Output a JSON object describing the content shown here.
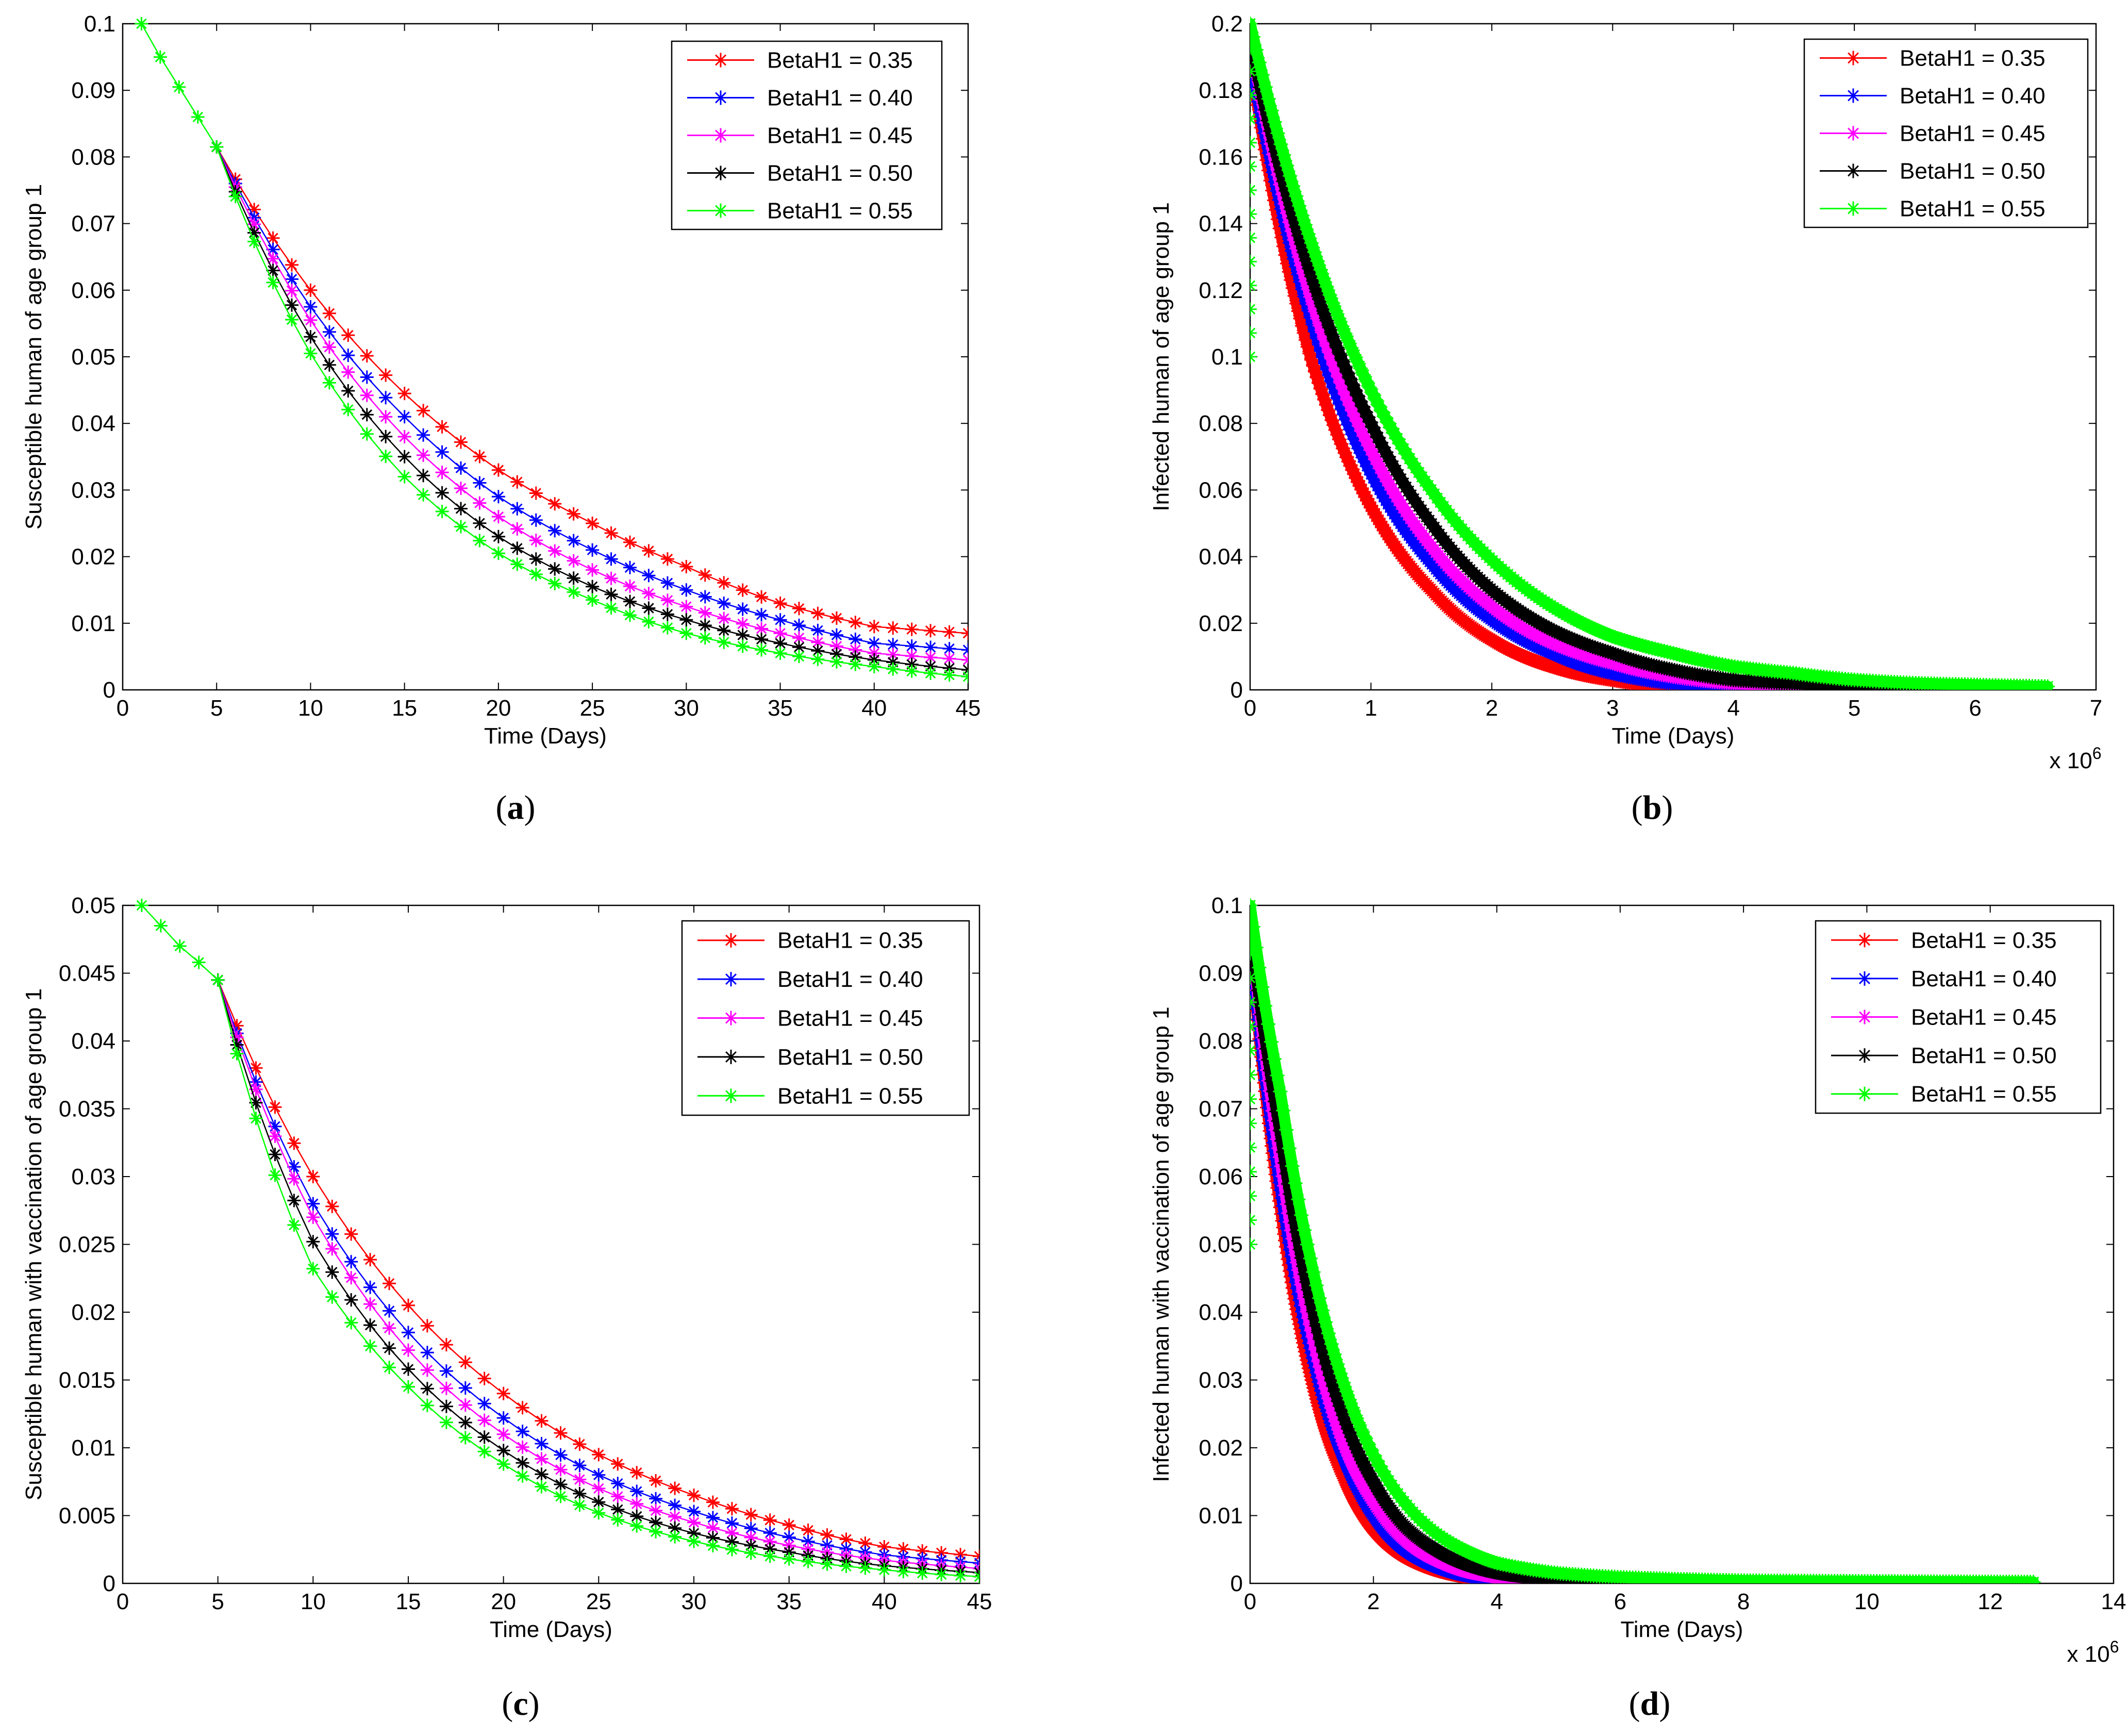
{
  "chart_data": [
    {
      "id": "a",
      "type": "line",
      "caption": "a",
      "title": "",
      "xlabel": "Time (Days)",
      "ylabel": "Susceptible human  of age group 1",
      "xlim": [
        0,
        45
      ],
      "ylim": [
        0,
        0.1
      ],
      "xticks": [
        "0",
        "5",
        "10",
        "15",
        "20",
        "25",
        "30",
        "35",
        "40",
        "45"
      ],
      "yticks": [
        "0",
        "0.01",
        "0.02",
        "0.03",
        "0.04",
        "0.05",
        "0.06",
        "0.07",
        "0.08",
        "0.09",
        "0.1"
      ],
      "exponent_label": "",
      "grid": false,
      "legend_position": "top-right",
      "shared_initial": {
        "x": [
          1,
          2,
          3,
          4,
          5
        ],
        "y": [
          0.1,
          0.095,
          0.0905,
          0.086,
          0.0815
        ]
      },
      "series": [
        {
          "name": "BetaH1 =  0.35",
          "color": "#ff0000",
          "x": [
            5,
            10,
            15,
            20,
            25,
            30,
            35,
            40,
            45
          ],
          "y": [
            0.0815,
            0.06,
            0.0445,
            0.033,
            0.025,
            0.0185,
            0.013,
            0.0095,
            0.0085
          ]
        },
        {
          "name": "BetaH1 = 0.40",
          "color": "#0000ff",
          "x": [
            5,
            10,
            15,
            20,
            25,
            30,
            35,
            40,
            45
          ],
          "y": [
            0.0815,
            0.0575,
            0.041,
            0.029,
            0.021,
            0.015,
            0.0105,
            0.007,
            0.006
          ]
        },
        {
          "name": "BetaH1 = 0.45",
          "color": "#ff00ff",
          "x": [
            5,
            10,
            15,
            20,
            25,
            30,
            35,
            40,
            45
          ],
          "y": [
            0.0815,
            0.0555,
            0.038,
            0.026,
            0.018,
            0.0125,
            0.0085,
            0.0055,
            0.0045
          ]
        },
        {
          "name": "BetaH1 = 0.50",
          "color": "#000000",
          "x": [
            5,
            10,
            15,
            20,
            25,
            30,
            35,
            40,
            45
          ],
          "y": [
            0.0815,
            0.053,
            0.035,
            0.023,
            0.0155,
            0.0105,
            0.007,
            0.0045,
            0.003
          ]
        },
        {
          "name": "BetaH1 = 0.55",
          "color": "#00ff00",
          "x": [
            5,
            10,
            15,
            20,
            25,
            30,
            35,
            40,
            45
          ],
          "y": [
            0.0815,
            0.0505,
            0.032,
            0.0205,
            0.0135,
            0.0085,
            0.0055,
            0.0035,
            0.002
          ]
        }
      ]
    },
    {
      "id": "b",
      "type": "line",
      "caption": "b",
      "title": "",
      "xlabel": "Time (Days)",
      "ylabel": "Infected human of age group 1",
      "xlim": [
        0,
        7
      ],
      "ylim": [
        0,
        0.2
      ],
      "xticks": [
        "0",
        "1",
        "2",
        "3",
        "4",
        "5",
        "6",
        "7"
      ],
      "yticks": [
        "0",
        "0.02",
        "0.04",
        "0.06",
        "0.08",
        "0.1",
        "0.12",
        "0.14",
        "0.16",
        "0.18",
        "0.2"
      ],
      "exponent_label": "x 10^6",
      "grid": false,
      "legend_position": "top-right",
      "series": [
        {
          "name": "BetaH1 =  0.35",
          "color": "#ff0000",
          "x": [
            0,
            0.5,
            1,
            1.5,
            2,
            2.5,
            3,
            3.5,
            4
          ],
          "y": [
            0.19,
            0.1,
            0.055,
            0.03,
            0.015,
            0.007,
            0.003,
            0.001,
            0
          ]
        },
        {
          "name": "BetaH1 = 0.40",
          "color": "#0000ff",
          "x": [
            0,
            0.5,
            1,
            1.5,
            2,
            2.5,
            3,
            3.5,
            4,
            4.5
          ],
          "y": [
            0.19,
            0.112,
            0.065,
            0.038,
            0.021,
            0.011,
            0.005,
            0.002,
            0.001,
            0
          ]
        },
        {
          "name": "BetaH1 = 0.45",
          "color": "#ff00ff",
          "x": [
            0,
            0.5,
            1,
            1.5,
            2,
            2.5,
            3,
            3.5,
            4,
            4.5,
            5
          ],
          "y": [
            0.195,
            0.118,
            0.072,
            0.043,
            0.025,
            0.014,
            0.008,
            0.004,
            0.002,
            0.001,
            0
          ]
        },
        {
          "name": "BetaH1 = 0.50",
          "color": "#000000",
          "x": [
            0,
            0.5,
            1,
            1.5,
            2,
            2.5,
            3,
            3.5,
            4,
            4.5,
            5,
            5.5
          ],
          "y": [
            0.195,
            0.125,
            0.08,
            0.05,
            0.03,
            0.018,
            0.011,
            0.006,
            0.003,
            0.002,
            0.001,
            0
          ]
        },
        {
          "name": "BetaH1 = 0.55",
          "color": "#00ff00",
          "x": [
            0,
            0.5,
            1,
            1.5,
            2,
            2.5,
            3,
            3.5,
            4,
            4.5,
            5,
            5.5,
            6,
            6.6
          ],
          "y": [
            0.2,
            0.135,
            0.09,
            0.06,
            0.039,
            0.025,
            0.016,
            0.011,
            0.007,
            0.005,
            0.003,
            0.002,
            0.0015,
            0.001
          ]
        }
      ]
    },
    {
      "id": "c",
      "type": "line",
      "caption": "c",
      "title": "",
      "xlabel": "Time (Days)",
      "ylabel": "Susceptible human with vaccination of age group 1",
      "xlim": [
        0,
        45
      ],
      "ylim": [
        0,
        0.05
      ],
      "xticks": [
        "0",
        "5",
        "10",
        "15",
        "20",
        "25",
        "30",
        "35",
        "40",
        "45"
      ],
      "yticks": [
        "0",
        "0.005",
        "0.01",
        "0.015",
        "0.02",
        "0.025",
        "0.03",
        "0.035",
        "0.04",
        "0.045",
        "0.05"
      ],
      "exponent_label": "",
      "grid": false,
      "legend_position": "top-right",
      "shared_initial": {
        "x": [
          1,
          2,
          3,
          4,
          5
        ],
        "y": [
          0.05,
          0.0485,
          0.047,
          0.0458,
          0.0445
        ]
      },
      "series": [
        {
          "name": "BetaH1 =  0.35",
          "color": "#ff0000",
          "x": [
            5,
            10,
            15,
            20,
            25,
            30,
            35,
            40,
            45
          ],
          "y": [
            0.0445,
            0.03,
            0.0205,
            0.014,
            0.0095,
            0.0065,
            0.0043,
            0.0027,
            0.002
          ]
        },
        {
          "name": "BetaH1 = 0.40",
          "color": "#0000ff",
          "x": [
            5,
            10,
            15,
            20,
            25,
            30,
            35,
            40,
            45
          ],
          "y": [
            0.0445,
            0.028,
            0.0185,
            0.0122,
            0.008,
            0.0053,
            0.0034,
            0.0021,
            0.0015
          ]
        },
        {
          "name": "BetaH1 = 0.45",
          "color": "#ff00ff",
          "x": [
            5,
            10,
            15,
            20,
            25,
            30,
            35,
            40,
            45
          ],
          "y": [
            0.0445,
            0.027,
            0.0172,
            0.011,
            0.007,
            0.0045,
            0.0028,
            0.0017,
            0.0011
          ]
        },
        {
          "name": "BetaH1 = 0.50",
          "color": "#000000",
          "x": [
            5,
            10,
            15,
            20,
            25,
            30,
            35,
            40,
            45
          ],
          "y": [
            0.0445,
            0.0252,
            0.0158,
            0.0098,
            0.006,
            0.0037,
            0.0023,
            0.0013,
            0.0008
          ]
        },
        {
          "name": "BetaH1 = 0.55",
          "color": "#00ff00",
          "x": [
            5,
            10,
            15,
            20,
            25,
            30,
            35,
            40,
            45
          ],
          "y": [
            0.0445,
            0.0232,
            0.0145,
            0.0088,
            0.0052,
            0.0031,
            0.0018,
            0.001,
            0.0005
          ]
        }
      ]
    },
    {
      "id": "d",
      "type": "line",
      "caption": "d",
      "title": "",
      "xlabel": "Time (Days)",
      "ylabel": "Infected human with vaccination of age group 1",
      "xlim": [
        0,
        14
      ],
      "ylim": [
        0,
        0.1
      ],
      "xticks": [
        "0",
        "2",
        "4",
        "6",
        "8",
        "10",
        "12",
        "14"
      ],
      "yticks": [
        "0",
        "0.01",
        "0.02",
        "0.03",
        "0.04",
        "0.05",
        "0.06",
        "0.07",
        "0.08",
        "0.09",
        "0.1"
      ],
      "exponent_label": "x 10^6",
      "grid": false,
      "legend_position": "top-right",
      "series": [
        {
          "name": "BetaH1 =  0.35",
          "color": "#ff0000",
          "x": [
            0,
            0.5,
            1,
            1.5,
            2,
            2.5,
            3,
            3.5,
            4
          ],
          "y": [
            0.095,
            0.055,
            0.03,
            0.016,
            0.008,
            0.004,
            0.002,
            0.001,
            0
          ]
        },
        {
          "name": "BetaH1 = 0.40",
          "color": "#0000ff",
          "x": [
            0,
            0.5,
            1,
            1.5,
            2,
            2.5,
            3,
            3.5,
            4,
            4.5,
            5
          ],
          "y": [
            0.095,
            0.058,
            0.034,
            0.019,
            0.01,
            0.005,
            0.0025,
            0.0012,
            0.0006,
            0.0003,
            0
          ]
        },
        {
          "name": "BetaH1 = 0.45",
          "color": "#ff00ff",
          "x": [
            0,
            0.5,
            1,
            1.5,
            2,
            2.5,
            3,
            3.5,
            4,
            5,
            6
          ],
          "y": [
            0.097,
            0.062,
            0.037,
            0.021,
            0.012,
            0.0065,
            0.0035,
            0.0018,
            0.001,
            0.0003,
            0
          ]
        },
        {
          "name": "BetaH1 = 0.50",
          "color": "#000000",
          "x": [
            0,
            0.5,
            1,
            1.5,
            2,
            2.5,
            3,
            3.5,
            4,
            5,
            6,
            7
          ],
          "y": [
            0.097,
            0.066,
            0.041,
            0.025,
            0.015,
            0.0085,
            0.005,
            0.0028,
            0.0016,
            0.0006,
            0.0002,
            0
          ]
        },
        {
          "name": "BetaH1 = 0.55",
          "color": "#00ff00",
          "x": [
            0,
            0.5,
            1,
            1.5,
            2,
            2.5,
            3,
            3.5,
            4,
            5,
            6,
            7,
            8,
            10,
            12.7
          ],
          "y": [
            0.1,
            0.072,
            0.047,
            0.03,
            0.019,
            0.012,
            0.0075,
            0.0048,
            0.003,
            0.0015,
            0.0009,
            0.0006,
            0.0004,
            0.0003,
            0.0002
          ]
        }
      ]
    }
  ]
}
